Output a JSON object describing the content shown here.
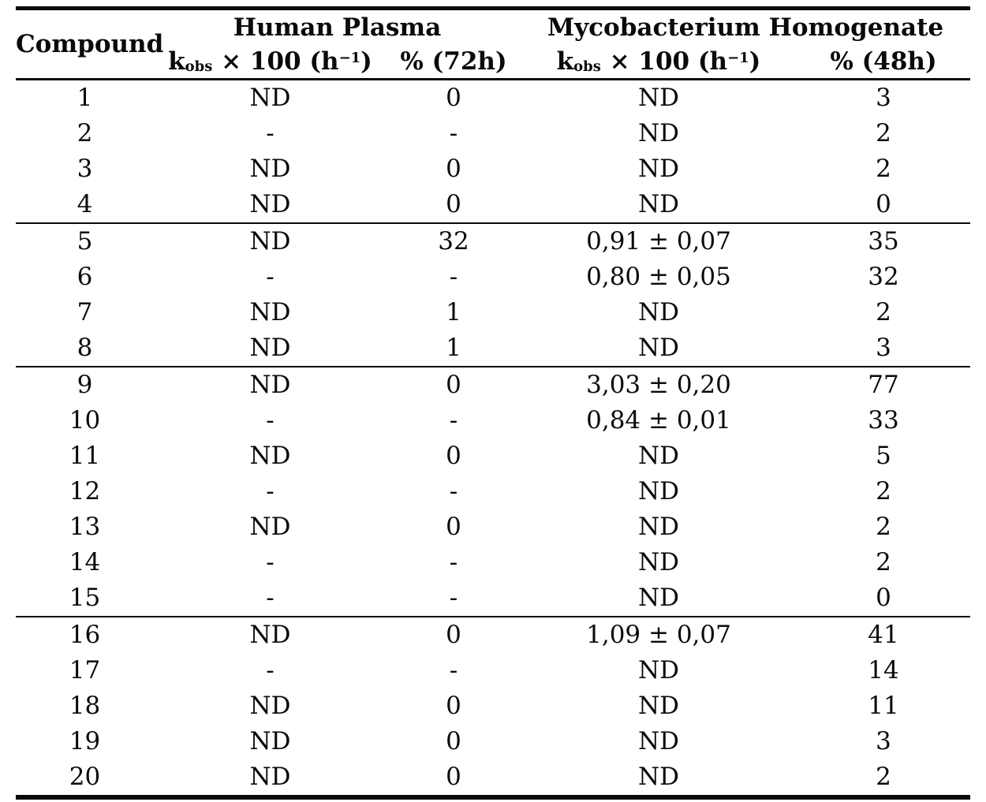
{
  "colors": {
    "background": "#ffffff",
    "text": "#0a0a0a",
    "rule": "#0a0a0a"
  },
  "table": {
    "columns": {
      "compound": "Compound",
      "group_plasma": "Human Plasma",
      "group_myco": "Mycobacterium Homogenate",
      "kobs_label": {
        "base": "k",
        "sub": "obs",
        "mid": " × 100 (h",
        "sup": "−1",
        "end": ")"
      },
      "pct_72h": "% (72h)",
      "pct_48h": "% (48h)"
    },
    "group_start_rows": [
      5,
      9,
      16
    ],
    "rows": [
      {
        "compound": "1",
        "plasma_kobs": "ND",
        "plasma_pct": "0",
        "myco_kobs": "ND",
        "myco_pct": "3"
      },
      {
        "compound": "2",
        "plasma_kobs": "-",
        "plasma_pct": "-",
        "myco_kobs": "ND",
        "myco_pct": "2"
      },
      {
        "compound": "3",
        "plasma_kobs": "ND",
        "plasma_pct": "0",
        "myco_kobs": "ND",
        "myco_pct": "2"
      },
      {
        "compound": "4",
        "plasma_kobs": "ND",
        "plasma_pct": "0",
        "myco_kobs": "ND",
        "myco_pct": "0"
      },
      {
        "compound": "5",
        "plasma_kobs": "ND",
        "plasma_pct": "32",
        "myco_kobs": "0,91 ± 0,07",
        "myco_pct": "35"
      },
      {
        "compound": "6",
        "plasma_kobs": "-",
        "plasma_pct": "-",
        "myco_kobs": "0,80 ± 0,05",
        "myco_pct": "32"
      },
      {
        "compound": "7",
        "plasma_kobs": "ND",
        "plasma_pct": "1",
        "myco_kobs": "ND",
        "myco_pct": "2"
      },
      {
        "compound": "8",
        "plasma_kobs": "ND",
        "plasma_pct": "1",
        "myco_kobs": "ND",
        "myco_pct": "3"
      },
      {
        "compound": "9",
        "plasma_kobs": "ND",
        "plasma_pct": "0",
        "myco_kobs": "3,03 ± 0,20",
        "myco_pct": "77"
      },
      {
        "compound": "10",
        "plasma_kobs": "-",
        "plasma_pct": "-",
        "myco_kobs": "0,84 ± 0,01",
        "myco_pct": "33"
      },
      {
        "compound": "11",
        "plasma_kobs": "ND",
        "plasma_pct": "0",
        "myco_kobs": "ND",
        "myco_pct": "5"
      },
      {
        "compound": "12",
        "plasma_kobs": "-",
        "plasma_pct": "-",
        "myco_kobs": "ND",
        "myco_pct": "2"
      },
      {
        "compound": "13",
        "plasma_kobs": "ND",
        "plasma_pct": "0",
        "myco_kobs": "ND",
        "myco_pct": "2"
      },
      {
        "compound": "14",
        "plasma_kobs": "-",
        "plasma_pct": "-",
        "myco_kobs": "ND",
        "myco_pct": "2"
      },
      {
        "compound": "15",
        "plasma_kobs": "-",
        "plasma_pct": "-",
        "myco_kobs": "ND",
        "myco_pct": "0"
      },
      {
        "compound": "16",
        "plasma_kobs": "ND",
        "plasma_pct": "0",
        "myco_kobs": "1,09 ± 0,07",
        "myco_pct": "41"
      },
      {
        "compound": "17",
        "plasma_kobs": "-",
        "plasma_pct": "-",
        "myco_kobs": "ND",
        "myco_pct": "14"
      },
      {
        "compound": "18",
        "plasma_kobs": "ND",
        "plasma_pct": "0",
        "myco_kobs": "ND",
        "myco_pct": "11"
      },
      {
        "compound": "19",
        "plasma_kobs": "ND",
        "plasma_pct": "0",
        "myco_kobs": "ND",
        "myco_pct": "3"
      },
      {
        "compound": "20",
        "plasma_kobs": "ND",
        "plasma_pct": "0",
        "myco_kobs": "ND",
        "myco_pct": "2"
      }
    ]
  }
}
